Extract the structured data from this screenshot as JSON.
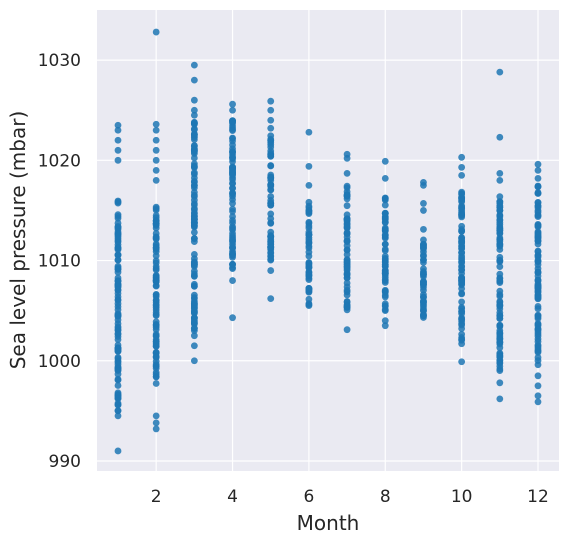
{
  "chart_data": {
    "type": "scatter",
    "title": "",
    "xlabel": "Month",
    "ylabel": "Sea level pressure (mbar)",
    "xlim": [
      0.45,
      12.55
    ],
    "ylim": [
      989,
      1035
    ],
    "xticks": [
      2,
      4,
      6,
      8,
      10,
      12
    ],
    "yticks": [
      990,
      1000,
      1010,
      1020,
      1030
    ],
    "grid": true,
    "point_color": "#1f77b4",
    "background": "#eaeaf2",
    "columns": [
      {
        "x": 1,
        "min": 991,
        "max": 1023.5,
        "dense": [
          [
            995,
            1016
          ]
        ],
        "outliers": [
          991,
          994.5,
          1020,
          1021,
          1022,
          1023,
          1023.5
        ]
      },
      {
        "x": 2,
        "min": 993,
        "max": 1032.8,
        "dense": [
          [
            997.5,
            1015.5
          ]
        ],
        "outliers": [
          993.2,
          993.8,
          994.5,
          1018,
          1019,
          1020,
          1021,
          1022,
          1023,
          1023.6,
          1032.8
        ]
      },
      {
        "x": 3,
        "min": 1000,
        "max": 1029.5,
        "dense": [
          [
            1003,
            1024
          ]
        ],
        "outliers": [
          1000,
          1001.5,
          1002.5,
          1024.5,
          1025,
          1026,
          1028,
          1029.5
        ]
      },
      {
        "x": 4,
        "min": 1004.3,
        "max": 1025.6,
        "dense": [
          [
            1009,
            1024
          ]
        ],
        "outliers": [
          1004.3,
          1008,
          1025,
          1025.6
        ]
      },
      {
        "x": 5,
        "min": 1006.2,
        "max": 1025.9,
        "dense": [
          [
            1010,
            1022.5
          ]
        ],
        "outliers": [
          1006.2,
          1009,
          1023.2,
          1024,
          1025,
          1025.9
        ]
      },
      {
        "x": 6,
        "min": 1004.7,
        "max": 1022.8,
        "dense": [
          [
            1005.5,
            1016
          ]
        ],
        "outliers": [
          1017.5,
          1019.4,
          1022.8
        ]
      },
      {
        "x": 7,
        "min": 1003.1,
        "max": 1020.6,
        "dense": [
          [
            1005,
            1017.5
          ]
        ],
        "outliers": [
          1003.1,
          1018.7,
          1020.2,
          1020.6
        ]
      },
      {
        "x": 8,
        "min": 1003.5,
        "max": 1019.9,
        "dense": [
          [
            1005,
            1017
          ]
        ],
        "outliers": [
          1003.5,
          1004,
          1018.2,
          1019.9
        ]
      },
      {
        "x": 9,
        "min": 1003.1,
        "max": 1017.8,
        "dense": [
          [
            1004,
            1013.5
          ]
        ],
        "outliers": [
          1015,
          1015.7,
          1017.5,
          1017.8
        ]
      },
      {
        "x": 10,
        "min": 999.9,
        "max": 1020.3,
        "dense": [
          [
            1002,
            1017.5
          ]
        ],
        "outliers": [
          999.9,
          1001.7,
          1018.5,
          1019.3,
          1020.3
        ]
      },
      {
        "x": 11,
        "min": 996.2,
        "max": 1028.8,
        "dense": [
          [
            999,
            1017
          ]
        ],
        "outliers": [
          996.2,
          997.8,
          1018,
          1018.7,
          1022.3,
          1028.8
        ]
      },
      {
        "x": 12,
        "min": 995.9,
        "max": 1019.6,
        "dense": [
          [
            999,
            1017.5
          ]
        ],
        "outliers": [
          995.9,
          996.5,
          997.5,
          998.5,
          1018.2,
          1019,
          1019.6
        ]
      }
    ]
  }
}
